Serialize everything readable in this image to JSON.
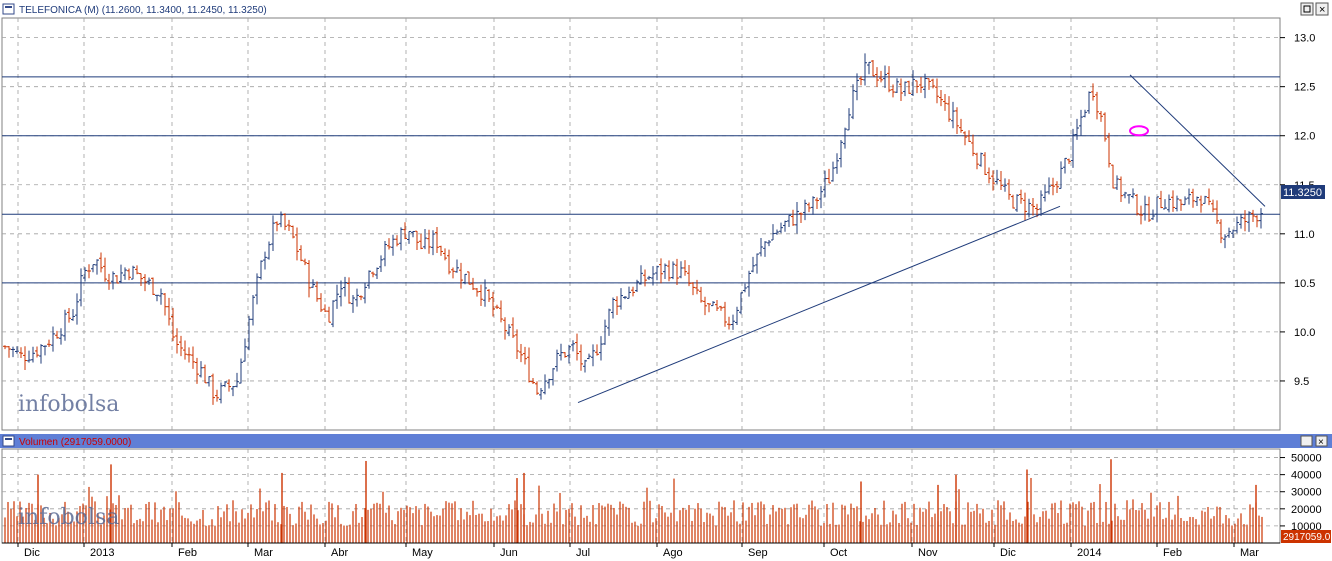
{
  "price_panel": {
    "title": "TELEFONICA (M) (11.2600, 11.3400, 11.2450, 11.3250)",
    "last_price": "11.3250"
  },
  "volume_panel": {
    "title": "Volumen (2917059.0000)",
    "last_volume": "2917059.0"
  },
  "watermark": "infobolsa",
  "colors": {
    "up_bar": "#1f3b7a",
    "down_bar": "#cc3300",
    "volume_bar": "#cc3300",
    "level_line": "#1f3b7a",
    "trendline": "#1f3b7a",
    "grid": "#a0a0a0",
    "highlight_ellipse": "#ff00ff"
  },
  "chart_data": [
    {
      "type": "ohlc",
      "title": "TELEFONICA (M)",
      "period": "daily",
      "y_ticks": [
        "9.5",
        "10.0",
        "10.5",
        "11.0",
        "11.5",
        "12.0",
        "12.5",
        "13.0"
      ],
      "ylim": [
        9.0,
        13.2
      ],
      "x_labels": [
        "Dic",
        "2013",
        "Feb",
        "Mar",
        "Abr",
        "May",
        "Jun",
        "Jul",
        "Ago",
        "Sep",
        "Oct",
        "Nov",
        "Dic",
        "2014",
        "Feb",
        "Mar"
      ],
      "grid": true,
      "horizontal_levels": [
        12.6,
        12.0,
        11.2,
        10.5
      ],
      "close_path": [
        [
          "Dic",
          9.85
        ],
        [
          "Dic",
          9.75
        ],
        [
          "Dic",
          9.8
        ],
        [
          "Dic",
          9.9
        ],
        [
          "Dic",
          10.05
        ],
        [
          "2013",
          10.2
        ],
        [
          "2013",
          10.6
        ],
        [
          "2013",
          10.75
        ],
        [
          "2013",
          10.6
        ],
        [
          "2013",
          10.55
        ],
        [
          "2013",
          10.65
        ],
        [
          "Feb",
          10.4
        ],
        [
          "Feb",
          9.9
        ],
        [
          "Feb",
          9.75
        ],
        [
          "Feb",
          9.6
        ],
        [
          "Feb",
          9.35
        ],
        [
          "Mar",
          9.5
        ],
        [
          "Mar",
          10.2
        ],
        [
          "Mar",
          10.8
        ],
        [
          "Mar",
          11.15
        ],
        [
          "Mar",
          11.0
        ],
        [
          "Abr",
          10.4
        ],
        [
          "Abr",
          10.15
        ],
        [
          "Abr",
          10.5
        ],
        [
          "Abr",
          10.3
        ],
        [
          "Abr",
          10.6
        ],
        [
          "May",
          10.95
        ],
        [
          "May",
          11.05
        ],
        [
          "May",
          10.85
        ],
        [
          "May",
          10.95
        ],
        [
          "May",
          10.7
        ],
        [
          "Jun",
          10.4
        ],
        [
          "Jun",
          10.1
        ],
        [
          "Jun",
          9.8
        ],
        [
          "Jun",
          9.4
        ],
        [
          "Jul",
          9.75
        ],
        [
          "Jul",
          9.85
        ],
        [
          "Jul",
          9.6
        ],
        [
          "Jul",
          9.9
        ],
        [
          "Jul",
          10.3
        ],
        [
          "Ago",
          10.55
        ],
        [
          "Ago",
          10.65
        ],
        [
          "Ago",
          10.6
        ],
        [
          "Ago",
          10.3
        ],
        [
          "Sep",
          10.1
        ],
        [
          "Sep",
          10.6
        ],
        [
          "Sep",
          10.95
        ],
        [
          "Sep",
          11.1
        ],
        [
          "Oct",
          11.3
        ],
        [
          "Oct",
          11.6
        ],
        [
          "Oct",
          12.3
        ],
        [
          "Oct",
          12.7
        ],
        [
          "Nov",
          12.45
        ],
        [
          "Nov",
          12.55
        ],
        [
          "Nov",
          12.4
        ],
        [
          "Nov",
          12.15
        ],
        [
          "Dic",
          11.7
        ],
        [
          "Dic",
          11.35
        ],
        [
          "Dic",
          11.25
        ],
        [
          "2014",
          11.6
        ],
        [
          "2014",
          11.85
        ],
        [
          "2014",
          12.2
        ],
        [
          "2014",
          12.5
        ],
        [
          "2014",
          12.1
        ],
        [
          "2014",
          11.5
        ],
        [
          "Feb",
          11.2
        ],
        [
          "Feb",
          11.35
        ],
        [
          "Feb",
          11.3
        ],
        [
          "Feb",
          11.4
        ],
        [
          "Mar",
          11.0
        ],
        [
          "Mar",
          11.33
        ]
      ],
      "trendlines": [
        {
          "from": [
            "Jun",
            9.28
          ],
          "to": [
            "Dic",
            11.28
          ]
        },
        {
          "from": [
            "2014",
            12.62
          ],
          "to": [
            "Mar",
            11.28
          ]
        }
      ],
      "annotation": {
        "type": "ellipse",
        "at": [
          "2014",
          12.05
        ]
      }
    },
    {
      "type": "bar",
      "title": "Volumen",
      "y_ticks": [
        "10000",
        "20000",
        "30000",
        "40000",
        "50000"
      ],
      "ylim": [
        0,
        55000
      ],
      "grid": true,
      "typical_range": [
        10000,
        25000
      ],
      "spikes": [
        [
          "Dic",
          40000
        ],
        [
          "2013",
          46000
        ],
        [
          "Mar",
          41000
        ],
        [
          "Abr",
          48000
        ],
        [
          "Jun",
          38000
        ],
        [
          "Jun",
          41000
        ],
        [
          "Oct",
          36000
        ],
        [
          "Nov",
          40000
        ],
        [
          "Nov",
          34000
        ],
        [
          "Dic",
          43000
        ],
        [
          "2014",
          49000
        ],
        [
          "Mar",
          34000
        ]
      ]
    }
  ]
}
